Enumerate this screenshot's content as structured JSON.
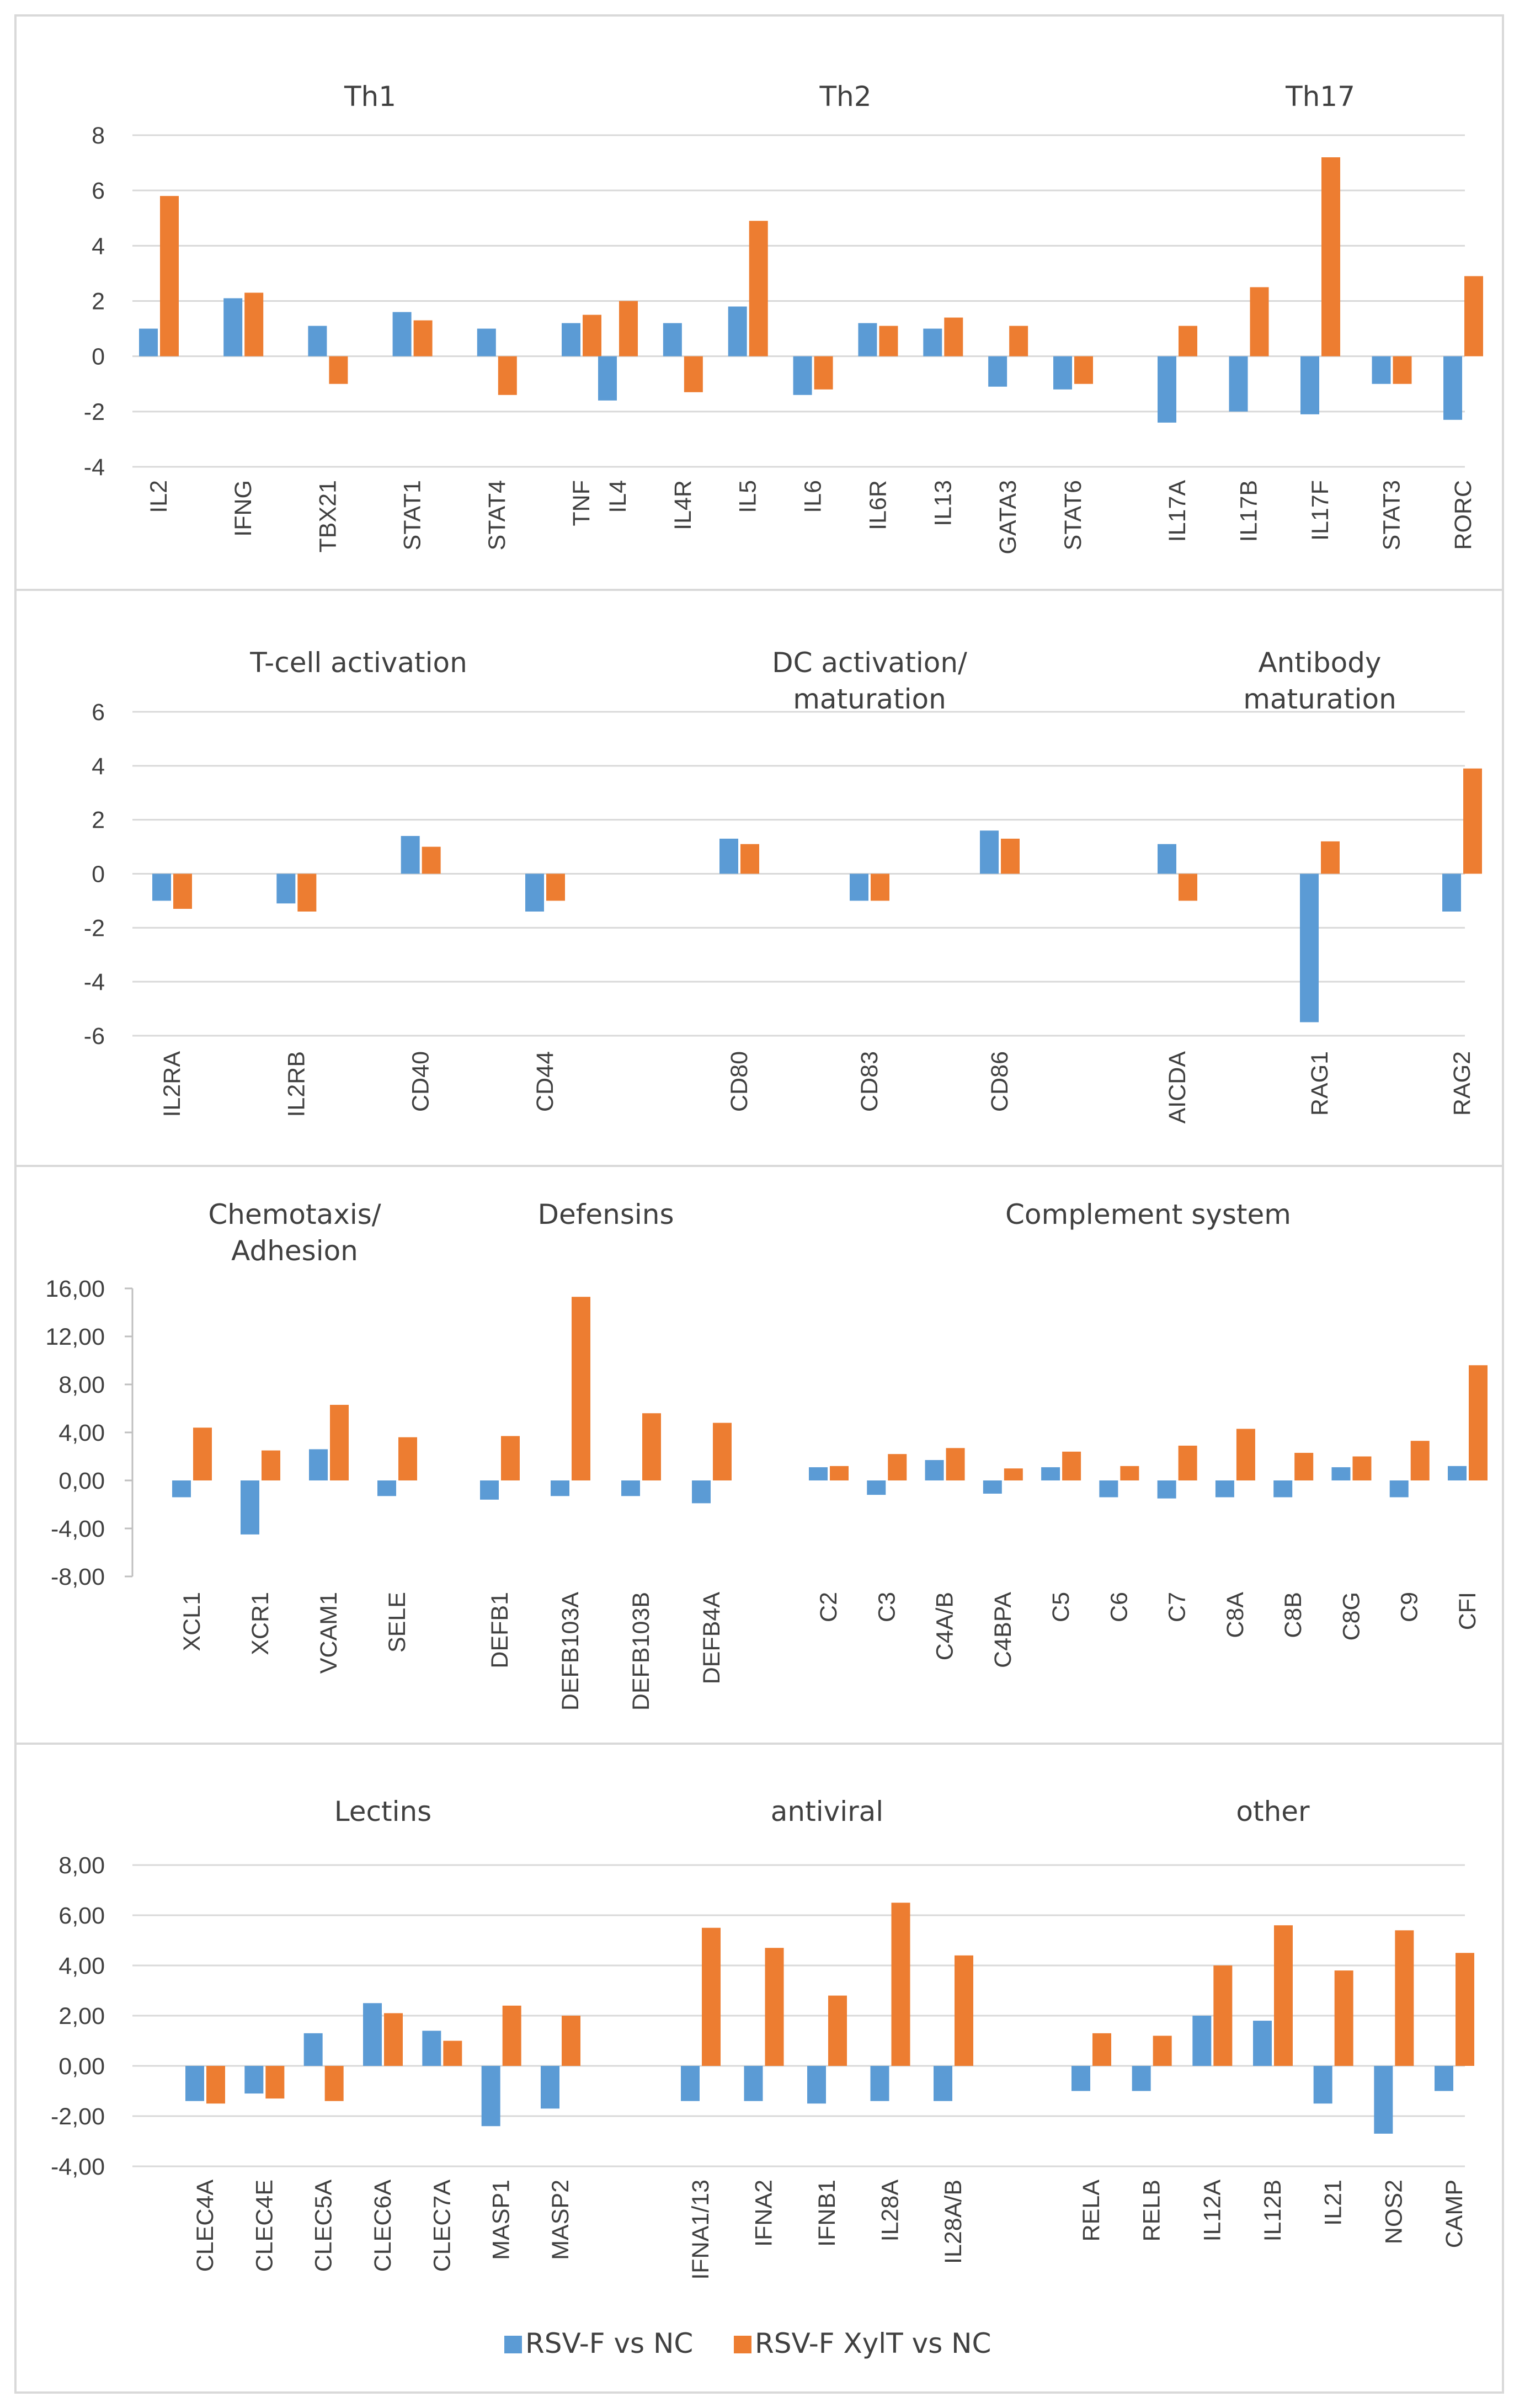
{
  "colors": {
    "series1": "#5b9bd5",
    "series2": "#ed7d31",
    "grid": "#d9d9d9",
    "text": "#404040",
    "highlight_label": "#6b6b00"
  },
  "legend": {
    "items": [
      "RSV-F vs NC",
      "RSV-F XylT vs NC"
    ]
  },
  "chart_data": [
    {
      "type": "bar",
      "ylim": [
        -4,
        8
      ],
      "yticks": [
        "8",
        "6",
        "4",
        "2",
        "0",
        "-2",
        "-4"
      ],
      "ytick_values": [
        8,
        6,
        4,
        2,
        0,
        -2,
        -4
      ],
      "grid": true,
      "groups": [
        {
          "title": [
            "Th1"
          ],
          "categories": [
            "IL2",
            "IFNG",
            "TBX21",
            "STAT1",
            "STAT4",
            "TNF"
          ]
        },
        {
          "title": [
            "Th2"
          ],
          "categories": [
            "IL4",
            "IL4R",
            "IL5",
            "IL6",
            "IL6R",
            "IL13",
            "GATA3",
            "STAT6"
          ]
        },
        {
          "title": [
            "Th17"
          ],
          "categories": [
            "IL17A",
            "IL17B",
            "IL17F",
            "STAT3",
            "RORC"
          ]
        }
      ],
      "series": [
        {
          "name": "RSV-F vs NC",
          "values": [
            1.0,
            2.1,
            1.1,
            1.6,
            1.0,
            1.2,
            -1.6,
            1.2,
            1.8,
            -1.4,
            1.2,
            1.0,
            -1.1,
            -1.2,
            -2.4,
            -2.0,
            -2.1,
            -1.0,
            -2.3
          ]
        },
        {
          "name": "RSV-F XylT vs NC",
          "values": [
            5.8,
            2.3,
            -1.0,
            1.3,
            -1.4,
            1.5,
            2.0,
            -1.3,
            4.9,
            -1.2,
            1.1,
            1.4,
            1.1,
            -1.0,
            1.1,
            2.5,
            7.2,
            -1.0,
            2.9
          ]
        }
      ]
    },
    {
      "type": "bar",
      "ylim": [
        -6,
        6
      ],
      "yticks": [
        "6",
        "4",
        "2",
        "0",
        "-2",
        "-4",
        "-6"
      ],
      "ytick_values": [
        6,
        4,
        2,
        0,
        -2,
        -4,
        -6
      ],
      "grid": true,
      "groups": [
        {
          "title": [
            "T-cell activation"
          ],
          "categories": [
            "IL2RA",
            "IL2RB",
            "CD40",
            "CD44"
          ]
        },
        {
          "title": [
            "DC activation/",
            "maturation"
          ],
          "categories": [
            "CD80",
            "CD83",
            "CD86"
          ]
        },
        {
          "title": [
            "Antibody",
            "maturation"
          ],
          "categories": [
            "AICDA",
            "RAG1",
            "RAG2"
          ]
        }
      ],
      "series": [
        {
          "name": "RSV-F vs NC",
          "values": [
            -1.0,
            -1.1,
            1.4,
            -1.4,
            1.3,
            -1.0,
            1.6,
            1.1,
            -5.5,
            -1.4
          ]
        },
        {
          "name": "RSV-F XylT vs NC",
          "values": [
            -1.3,
            -1.4,
            1.0,
            -1.0,
            1.1,
            -1.0,
            1.3,
            -1.0,
            1.2,
            3.9
          ]
        }
      ]
    },
    {
      "type": "bar",
      "ylim": [
        -8,
        16
      ],
      "yticks": [
        "16,00",
        "12,00",
        "8,00",
        "4,00",
        "0,00",
        "-4,00",
        "-8,00"
      ],
      "ytick_values": [
        16,
        12,
        8,
        4,
        0,
        -4,
        -8
      ],
      "grid": false,
      "groups": [
        {
          "title": [
            "Chemotaxis/",
            "Adhesion"
          ],
          "categories": [
            "XCL1",
            "XCR1",
            "VCAM1",
            "SELE"
          ]
        },
        {
          "title": [
            "Defensins"
          ],
          "categories": [
            "DEFB1",
            "DEFB103A",
            "DEFB103B",
            "DEFB4A"
          ]
        },
        {
          "title": [
            "Complement system"
          ],
          "categories": [
            "C2",
            "C3",
            "C4A/B",
            "C4BPA",
            "C5",
            "C6",
            "C7",
            "C8A",
            "C8B",
            "C8G",
            "C9",
            "CFI"
          ]
        }
      ],
      "series": [
        {
          "name": "RSV-F vs NC",
          "values": [
            -1.4,
            -4.5,
            2.6,
            -1.3,
            -1.6,
            -1.3,
            -1.3,
            -1.9,
            1.1,
            -1.2,
            1.7,
            -1.1,
            1.1,
            -1.4,
            -1.5,
            -1.4,
            -1.4,
            1.1,
            -1.4,
            1.2
          ]
        },
        {
          "name": "RSV-F XylT vs NC",
          "values": [
            4.4,
            2.5,
            6.3,
            3.6,
            3.7,
            15.3,
            5.6,
            4.8,
            1.2,
            2.2,
            2.7,
            1.0,
            2.4,
            1.2,
            2.9,
            4.3,
            2.3,
            2.0,
            3.3,
            9.6
          ]
        }
      ]
    },
    {
      "type": "bar",
      "ylim": [
        -4,
        8
      ],
      "yticks": [
        "8,00",
        "6,00",
        "4,00",
        "2,00",
        "0,00",
        "-2,00",
        "-4,00"
      ],
      "ytick_values": [
        8,
        6,
        4,
        2,
        0,
        -2,
        -4
      ],
      "grid": true,
      "groups": [
        {
          "title": [
            "Lectins"
          ],
          "categories": [
            "CLEC4A",
            "CLEC4E",
            "CLEC5A",
            "CLEC6A",
            "CLEC7A",
            "MASP1",
            "MASP2"
          ]
        },
        {
          "title": [
            "antiviral"
          ],
          "categories": [
            "IFNA1/13",
            "IFNA2",
            "IFNB1",
            "IL28A",
            "IL28A/B"
          ]
        },
        {
          "title": [
            "other"
          ],
          "categories": [
            "RELA",
            "RELB",
            "IL12A",
            "IL12B",
            "IL21",
            "NOS2",
            "CAMP"
          ]
        }
      ],
      "highlighted_category": "CLEC4A",
      "series": [
        {
          "name": "RSV-F vs NC",
          "values": [
            -1.4,
            -1.1,
            1.3,
            2.5,
            1.4,
            -2.4,
            -1.7,
            -1.4,
            -1.4,
            -1.5,
            -1.4,
            -1.4,
            -1.0,
            -1.0,
            2.0,
            1.8,
            -1.5,
            -2.7,
            -1.0
          ]
        },
        {
          "name": "RSV-F XylT vs NC",
          "values": [
            -1.5,
            -1.3,
            -1.4,
            2.1,
            1.0,
            2.4,
            2.0,
            5.5,
            4.7,
            2.8,
            6.5,
            4.4,
            1.3,
            1.2,
            4.0,
            5.6,
            3.8,
            5.4,
            4.5
          ]
        }
      ]
    }
  ]
}
